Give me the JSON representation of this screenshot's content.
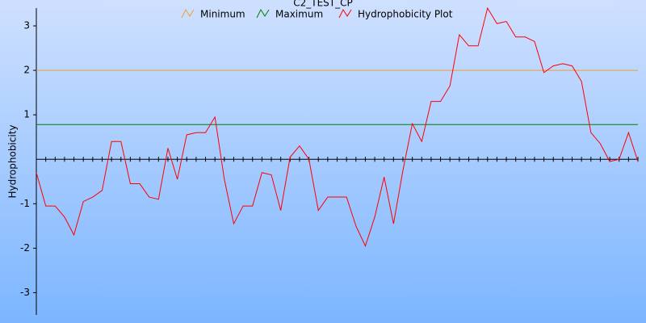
{
  "chart_data": {
    "type": "line",
    "title": "C2_TEST_CP",
    "ylabel": "Hydrophobicity",
    "ylim": [
      -3.5,
      3.4
    ],
    "yticks": [
      -3,
      -2,
      -1,
      1,
      2,
      3
    ],
    "series": [
      {
        "name": "Minimum",
        "color": "#f0a030",
        "value": 2
      },
      {
        "name": "Maximum",
        "color": "#008000",
        "value": 0.78
      },
      {
        "name": "Hydrophobicity Plot",
        "color": "#ff0000",
        "values": [
          -0.3,
          -1.05,
          -1.05,
          -1.3,
          -1.7,
          -0.95,
          -0.85,
          -0.7,
          0.4,
          0.4,
          -0.55,
          -0.55,
          -0.85,
          -0.9,
          0.25,
          -0.45,
          0.55,
          0.6,
          0.6,
          0.95,
          -0.45,
          -1.45,
          -1.05,
          -1.05,
          -0.3,
          -0.35,
          -1.15,
          0.05,
          0.3,
          0.0,
          -1.15,
          -0.85,
          -0.85,
          -0.85,
          -1.5,
          -1.95,
          -1.3,
          -0.4,
          -1.45,
          -0.25,
          0.8,
          0.4,
          1.3,
          1.3,
          1.65,
          2.8,
          2.55,
          2.55,
          3.4,
          3.05,
          3.1,
          2.75,
          2.75,
          2.65,
          1.95,
          2.1,
          2.15,
          2.1,
          1.75,
          0.6,
          0.35,
          -0.05,
          0.0,
          0.6,
          -0.05
        ]
      }
    ]
  }
}
